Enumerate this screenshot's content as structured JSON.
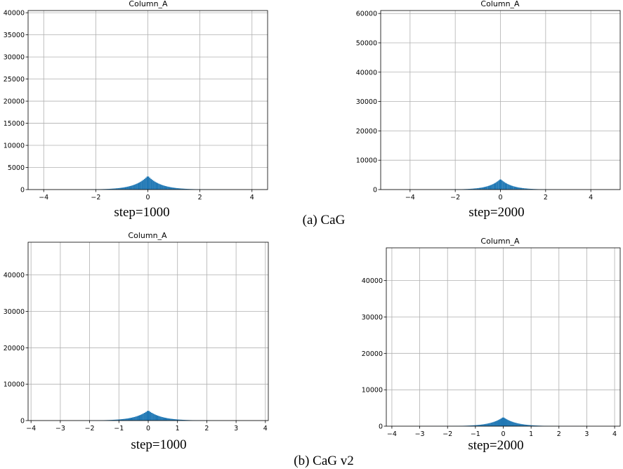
{
  "chart_data": [
    {
      "type": "bar",
      "title": "Column_A",
      "caption": "step=1000",
      "xlim": [
        -4.6,
        4.6
      ],
      "ylim": [
        0,
        40500
      ],
      "xticks": [
        -4,
        -2,
        0,
        2,
        4
      ],
      "yticks": [
        0,
        5000,
        10000,
        15000,
        20000,
        25000,
        30000,
        35000,
        40000
      ],
      "peak": 3100,
      "spread": 0.5,
      "grid": true,
      "color": "#1f77b4"
    },
    {
      "type": "bar",
      "title": "Column_A",
      "caption": "step=2000",
      "xlim": [
        -5.3,
        5.3
      ],
      "ylim": [
        0,
        61000
      ],
      "xticks": [
        -4,
        -2,
        0,
        2,
        4
      ],
      "yticks": [
        0,
        10000,
        20000,
        30000,
        40000,
        50000,
        60000
      ],
      "peak": 3600,
      "spread": 0.5,
      "grid": true,
      "color": "#1f77b4"
    },
    {
      "type": "bar",
      "title": "Column_A",
      "caption": "step=1000",
      "xlim": [
        -4.1,
        4.1
      ],
      "ylim": [
        0,
        49000
      ],
      "xticks": [
        -4,
        -3,
        -2,
        -1,
        0,
        1,
        2,
        3,
        4
      ],
      "yticks": [
        0,
        10000,
        20000,
        30000,
        40000
      ],
      "peak": 2800,
      "spread": 0.45,
      "grid": true,
      "color": "#1f77b4"
    },
    {
      "type": "bar",
      "title": "Column_A",
      "caption": "step=2000",
      "xlim": [
        -4.2,
        4.2
      ],
      "ylim": [
        0,
        49000
      ],
      "xticks": [
        -4,
        -3,
        -2,
        -1,
        0,
        1,
        2,
        3,
        4
      ],
      "yticks": [
        0,
        10000,
        20000,
        30000,
        40000
      ],
      "peak": 2500,
      "spread": 0.45,
      "grid": true,
      "color": "#1f77b4"
    }
  ],
  "row_labels": [
    "(a) CaG",
    "(b) CaG v2"
  ]
}
